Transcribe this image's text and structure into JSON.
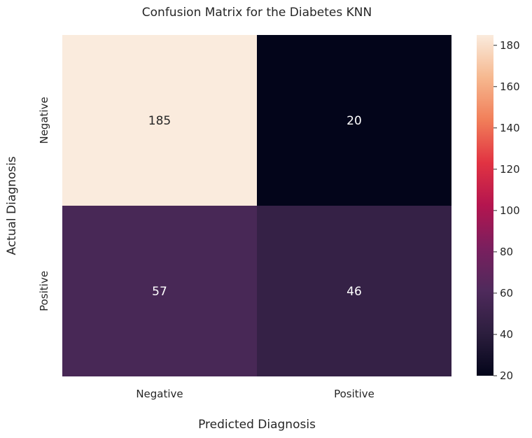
{
  "chart_data": {
    "type": "heatmap",
    "title": "Confusion Matrix for the Diabetes KNN",
    "xlabel": "Predicted Diagnosis",
    "ylabel": "Actual Diagnosis",
    "x_categories": [
      "Negative",
      "Positive"
    ],
    "y_categories": [
      "Negative",
      "Positive"
    ],
    "values": [
      [
        185,
        20
      ],
      [
        57,
        46
      ]
    ],
    "colorbar": {
      "min": 20,
      "max": 185,
      "ticks": [
        20,
        40,
        60,
        80,
        100,
        120,
        140,
        160,
        180
      ],
      "colormap": "rocket"
    },
    "grid": false
  }
}
